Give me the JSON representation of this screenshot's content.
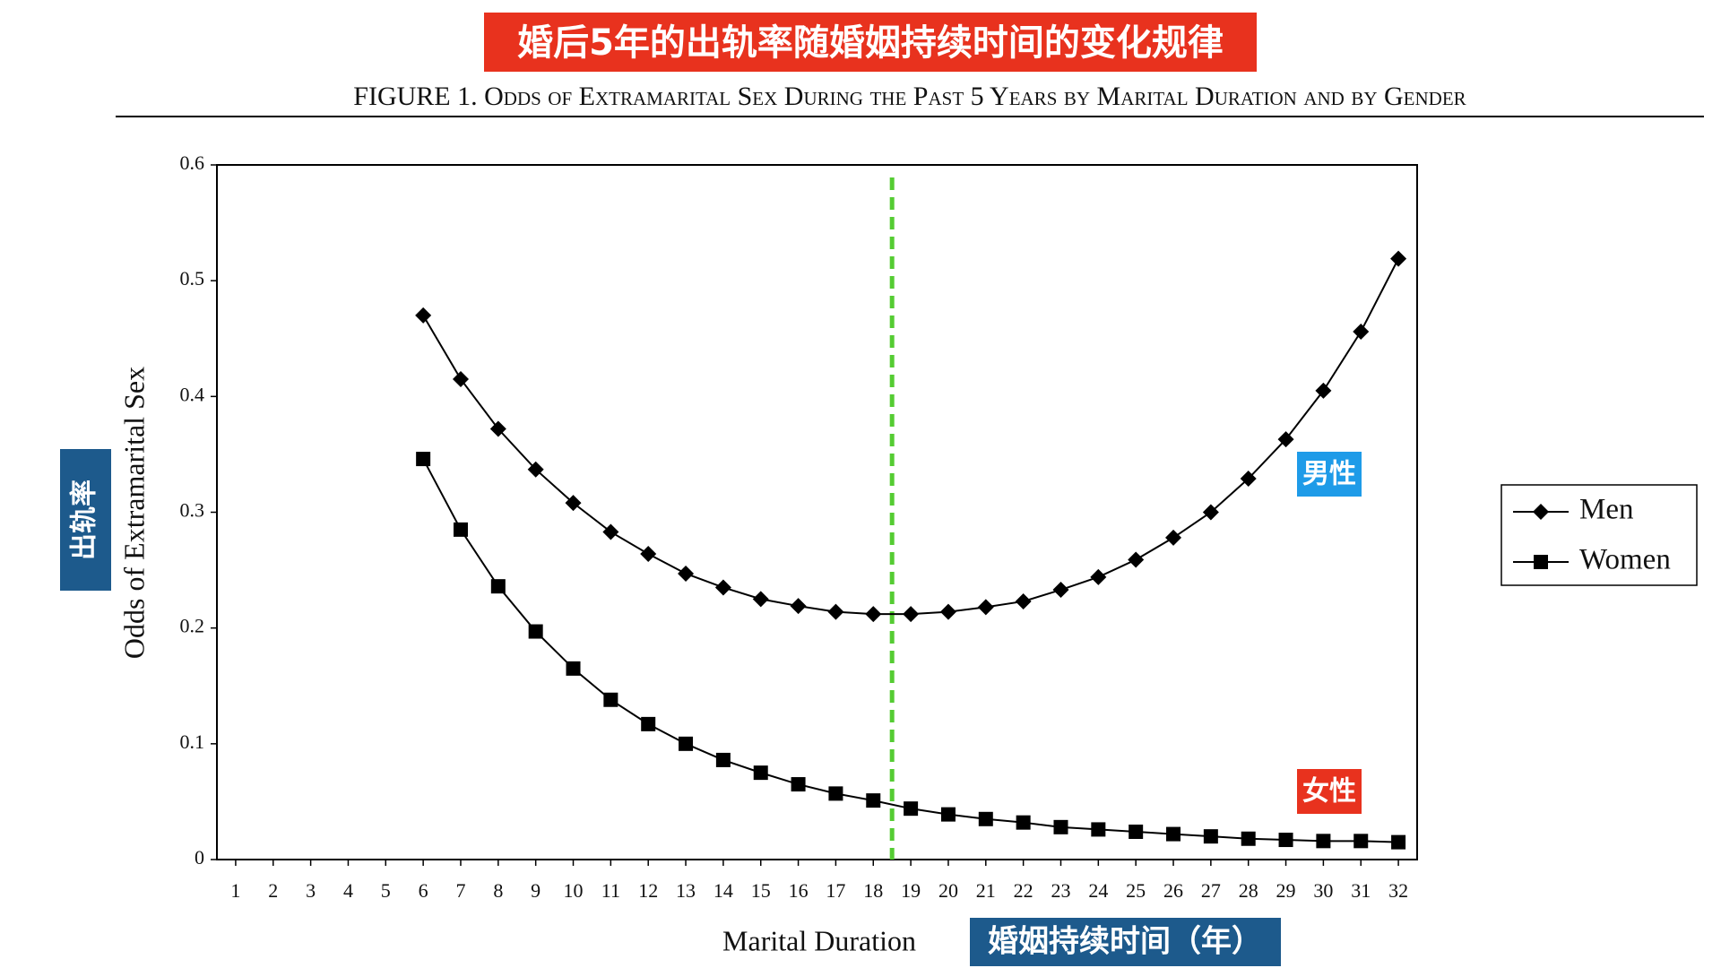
{
  "chart_data": {
    "type": "line",
    "banner": "婚后5年的出轨率随婚姻持续时间的变化规律",
    "title": "FIGURE 1.   Odds of Extramarital Sex During the Past 5 Years by Marital Duration and by Gender",
    "xlabel": "Marital Duration",
    "ylabel": "Odds of Extramarital Sex",
    "x_annotation": "婚姻持续时间（年）",
    "y_annotation": "出轨率",
    "x": [
      6,
      7,
      8,
      9,
      10,
      11,
      12,
      13,
      14,
      15,
      16,
      17,
      18,
      19,
      20,
      21,
      22,
      23,
      24,
      25,
      26,
      27,
      28,
      29,
      30,
      31,
      32
    ],
    "series": [
      {
        "name": "Men",
        "color": "#000000",
        "marker": "diamond",
        "annotation": "男性",
        "values": [
          0.47,
          0.415,
          0.372,
          0.337,
          0.308,
          0.283,
          0.264,
          0.247,
          0.235,
          0.225,
          0.219,
          0.214,
          0.212,
          0.212,
          0.214,
          0.218,
          0.223,
          0.233,
          0.244,
          0.259,
          0.278,
          0.3,
          0.329,
          0.363,
          0.405,
          0.456,
          0.519
        ]
      },
      {
        "name": "Women",
        "color": "#000000",
        "marker": "square",
        "annotation": "女性",
        "values": [
          0.346,
          0.285,
          0.236,
          0.197,
          0.165,
          0.138,
          0.117,
          0.1,
          0.086,
          0.075,
          0.065,
          0.057,
          0.051,
          0.044,
          0.039,
          0.035,
          0.032,
          0.028,
          0.026,
          0.024,
          0.022,
          0.02,
          0.018,
          0.017,
          0.016,
          0.016,
          0.015
        ]
      }
    ],
    "xlim": [
      0.5,
      32.5
    ],
    "xticks": [
      1,
      2,
      3,
      4,
      5,
      6,
      7,
      8,
      9,
      10,
      11,
      12,
      13,
      14,
      15,
      16,
      17,
      18,
      19,
      20,
      21,
      22,
      23,
      24,
      25,
      26,
      27,
      28,
      29,
      30,
      31,
      32
    ],
    "ylim": [
      0,
      0.6
    ],
    "yticks": [
      0,
      0.1,
      0.2,
      0.3,
      0.4,
      0.5,
      0.6
    ],
    "reference_x": 18.5,
    "reference_color": "#55cc33",
    "legend": "right"
  }
}
